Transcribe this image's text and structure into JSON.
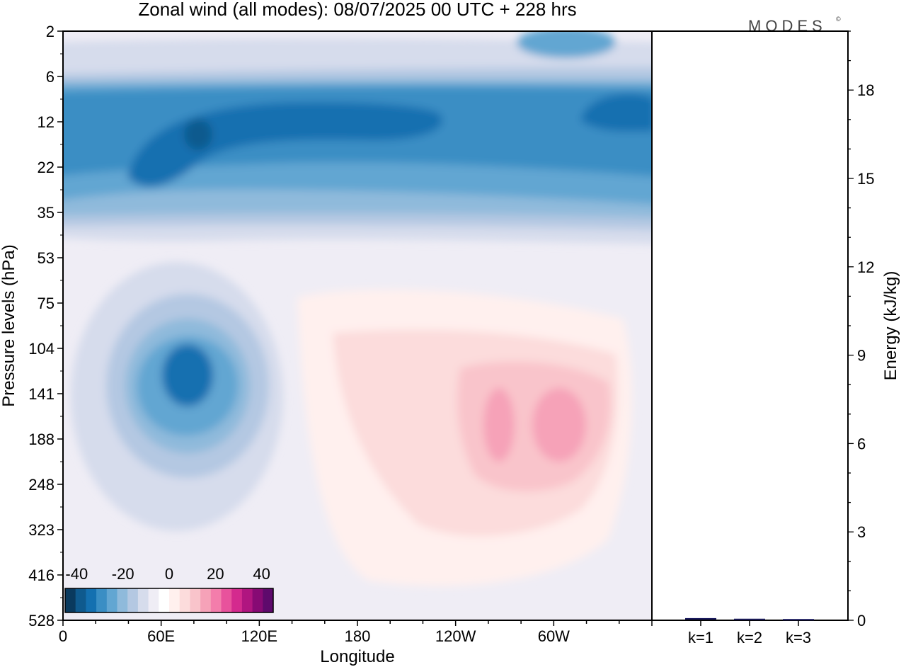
{
  "chart_data": [
    {
      "type": "heatmap",
      "title": "Zonal wind (all modes):  08/07/2025  00 UTC  + 228 hrs",
      "xlabel": "Longitude",
      "ylabel": "Pressure levels (hPa)",
      "x_ticks": [
        "0",
        "60E",
        "120E",
        "180",
        "120W",
        "60W"
      ],
      "y_ticks": [
        "2",
        "6",
        "12",
        "22",
        "35",
        "53",
        "75",
        "104",
        "141",
        "188",
        "248",
        "323",
        "416",
        "528"
      ],
      "colorbar": {
        "tick_labels": [
          "-40",
          "-20",
          "0",
          "20",
          "40"
        ],
        "range": [
          -45,
          45
        ],
        "step": 5,
        "colors": [
          "#0a3a5e",
          "#0f5a8e",
          "#1470b0",
          "#3a8ec4",
          "#62a6d2",
          "#8fbadb",
          "#b4c8e2",
          "#d6dcec",
          "#efedf5",
          "#ffffff",
          "#fff0ee",
          "#fcdcdc",
          "#f9c4cb",
          "#f6a2b8",
          "#f37dab",
          "#e8529c",
          "#d42a8e",
          "#b01580",
          "#870a74",
          "#5e0a6c"
        ]
      },
      "features": [
        {
          "label": "upper easterly band",
          "lon_range": [
            0,
            360
          ],
          "level_range": [
            6,
            35
          ],
          "value": -25
        },
        {
          "label": "upper easterly core",
          "lon_range": [
            40,
            230
          ],
          "level_range": [
            10,
            22
          ],
          "value": -35
        },
        {
          "label": "easterly maximum",
          "lon": 75,
          "level": 130,
          "value": -30
        },
        {
          "label": "westerly maximum",
          "lon": 275,
          "level": 170,
          "value": 20
        },
        {
          "label": "westerly maximum",
          "lon": 305,
          "level": 165,
          "value": 20
        }
      ]
    },
    {
      "type": "bar",
      "categories": [
        "k=1",
        "k=2",
        "k=3"
      ],
      "values": [
        0.05,
        0.03,
        0.02
      ],
      "ylabel": "Energy (kJ/kg)",
      "ylim": [
        0,
        20
      ],
      "y_ticks": [
        "0",
        "3",
        "6",
        "9",
        "12",
        "15",
        "18"
      ],
      "bar_color": "#1a1a5e"
    }
  ],
  "logo": "MODES"
}
